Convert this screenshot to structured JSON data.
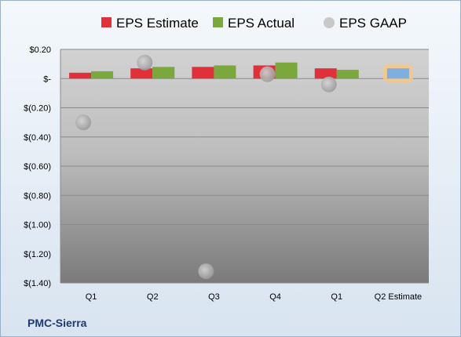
{
  "chart_data": {
    "type": "bar",
    "title": "",
    "xlabel": "",
    "ylabel": "",
    "categories": [
      "Q1",
      "Q2",
      "Q3",
      "Q4",
      "Q1",
      "Q2 Estimate"
    ],
    "series": [
      {
        "name": "EPS Estimate",
        "color": "#e0303a",
        "values": [
          0.04,
          0.07,
          0.08,
          0.09,
          0.07,
          null
        ]
      },
      {
        "name": "EPS Actual",
        "color": "#7aa83c",
        "values": [
          0.05,
          0.08,
          0.09,
          0.11,
          0.06,
          null
        ]
      },
      {
        "name": "EPS GAAP",
        "color": "#b9b9b9",
        "type": "scatter",
        "values": [
          -0.3,
          0.11,
          -1.32,
          0.03,
          -0.04,
          null
        ]
      }
    ],
    "forward_estimate": {
      "category": "Q2 Estimate",
      "value": 0.07,
      "color": "#7faee0",
      "glow": "#f5c88a"
    },
    "ylim": [
      -1.4,
      0.2
    ],
    "yticks": [
      0.2,
      0.0,
      -0.2,
      -0.4,
      -0.6,
      -0.8,
      -1.0,
      -1.2,
      -1.4
    ],
    "ytick_labels": [
      "$0.20",
      "$-",
      "$(0.20)",
      "$(0.40)",
      "$(0.60)",
      "$(0.80)",
      "$(1.00)",
      "$(1.20)",
      "$(1.40)"
    ],
    "grid": true,
    "legend_position": "top"
  },
  "brand": {
    "name": "PMC-Sierra"
  }
}
